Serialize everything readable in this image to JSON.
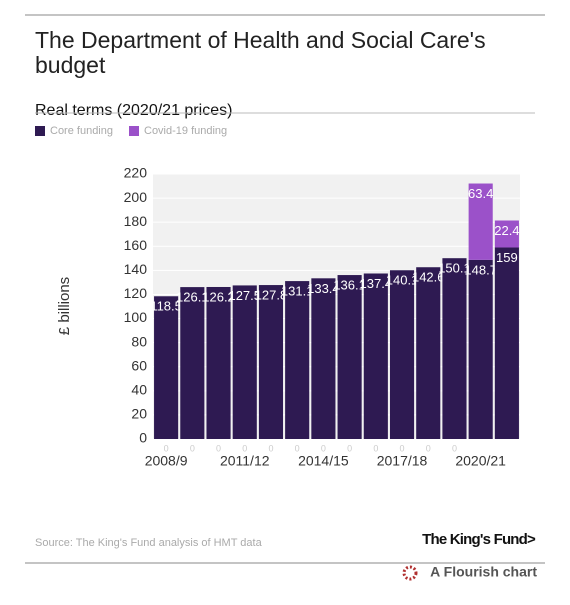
{
  "chart_data": {
    "type": "stacked-bar",
    "title": "The Department of Health and Social Care's budget",
    "subtitle": "Real terms (2020/21 prices)",
    "y_label": "£ billions",
    "categories": [
      "2008/9",
      null,
      null,
      "2011/12",
      null,
      null,
      "2014/15",
      null,
      null,
      "2017/18",
      null,
      null,
      "2020/21",
      null
    ],
    "series": [
      {
        "name": "Core funding",
        "color": "#2e1a52",
        "values": [
          118.5,
          126.1,
          126.2,
          127.5,
          127.8,
          131.1,
          133.4,
          136.1,
          137.4,
          140.1,
          142.6,
          150.1,
          148.7,
          159
        ]
      },
      {
        "name": "Covid-19 funding",
        "color": "#9b51c9",
        "values": [
          0,
          0,
          0,
          0,
          0,
          0,
          0,
          0,
          0,
          0,
          0,
          0,
          63.4,
          22.4
        ]
      }
    ],
    "ylim": [
      0,
      220
    ],
    "yticks": [
      0,
      20,
      40,
      60,
      80,
      100,
      120,
      140,
      160,
      180,
      200,
      220
    ],
    "grid": true,
    "source": "Source: The King's Fund analysis of HMT data",
    "logo": "The King's Fund>",
    "credit": "A Flourish chart"
  }
}
